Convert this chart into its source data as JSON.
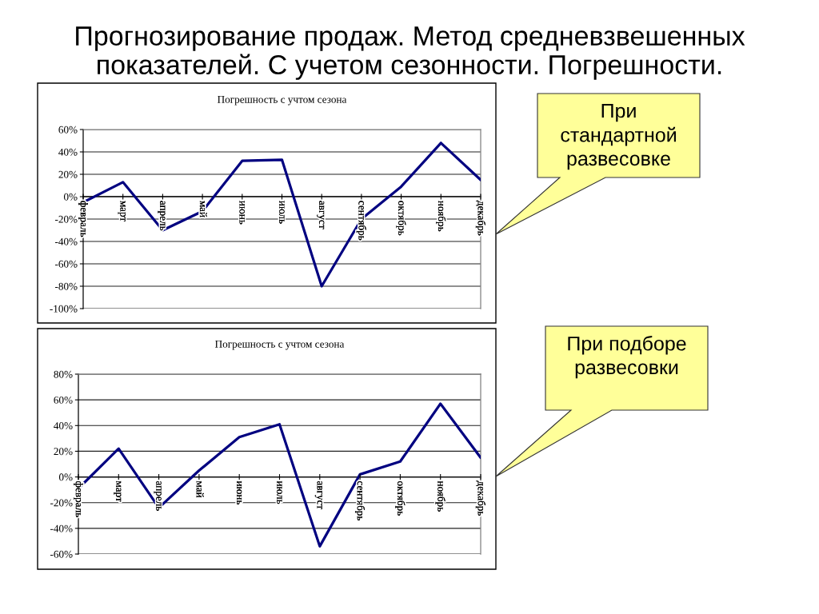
{
  "chart_data": [
    {
      "type": "other",
      "title": "Прогнозирование продаж. Метод средневзвешенных показателей. С учетом сезонности. Погрешности."
    },
    {
      "type": "line",
      "title": "Погрешность с учтом сезона",
      "categories": [
        "февраль",
        "март",
        "апрель",
        "май",
        "июнь",
        "июль",
        "август",
        "сентябрь",
        "октябрь",
        "ноябрь",
        "декабрь"
      ],
      "series": [
        {
          "color": "#000080",
          "values": [
            -5,
            13,
            -30,
            -13,
            32,
            33,
            -80,
            -20,
            9,
            48,
            15
          ]
        }
      ],
      "ylim": [
        -100,
        60
      ],
      "yticks": [
        {
          "value": -100,
          "label": "-100%"
        },
        {
          "value": -80,
          "label": "-80%"
        },
        {
          "value": -60,
          "label": "-60%"
        },
        {
          "value": -40,
          "label": "-40%"
        },
        {
          "value": -20,
          "label": "-20%"
        },
        {
          "value": 0,
          "label": "0%"
        },
        {
          "value": 20,
          "label": "20%"
        },
        {
          "value": 40,
          "label": "40%"
        },
        {
          "value": 60,
          "label": "60%"
        }
      ],
      "grid": "y",
      "annotations": [
        "При стандартной развесовке"
      ]
    },
    {
      "type": "line",
      "title": "Погрешность с учтом сезона",
      "categories": [
        "февраль",
        "март",
        "апрель",
        "май",
        "июнь",
        "июль",
        "август",
        "сентябрь",
        "октябрь",
        "ноябрь",
        "декабрь"
      ],
      "series": [
        {
          "color": "#000080",
          "values": [
            -9,
            22,
            -24,
            5,
            31,
            41,
            -54,
            2,
            12,
            57,
            15
          ]
        }
      ],
      "ylim": [
        -60,
        80
      ],
      "yticks": [
        {
          "value": -60,
          "label": "-60%"
        },
        {
          "value": -40,
          "label": "-40%"
        },
        {
          "value": -20,
          "label": "-20%"
        },
        {
          "value": 0,
          "label": "0%"
        },
        {
          "value": 20,
          "label": "20%"
        },
        {
          "value": 40,
          "label": "40%"
        },
        {
          "value": 60,
          "label": "60%"
        },
        {
          "value": 80,
          "label": "80%"
        }
      ],
      "grid": "y",
      "annotations": [
        "При подборе развесовки"
      ]
    }
  ]
}
